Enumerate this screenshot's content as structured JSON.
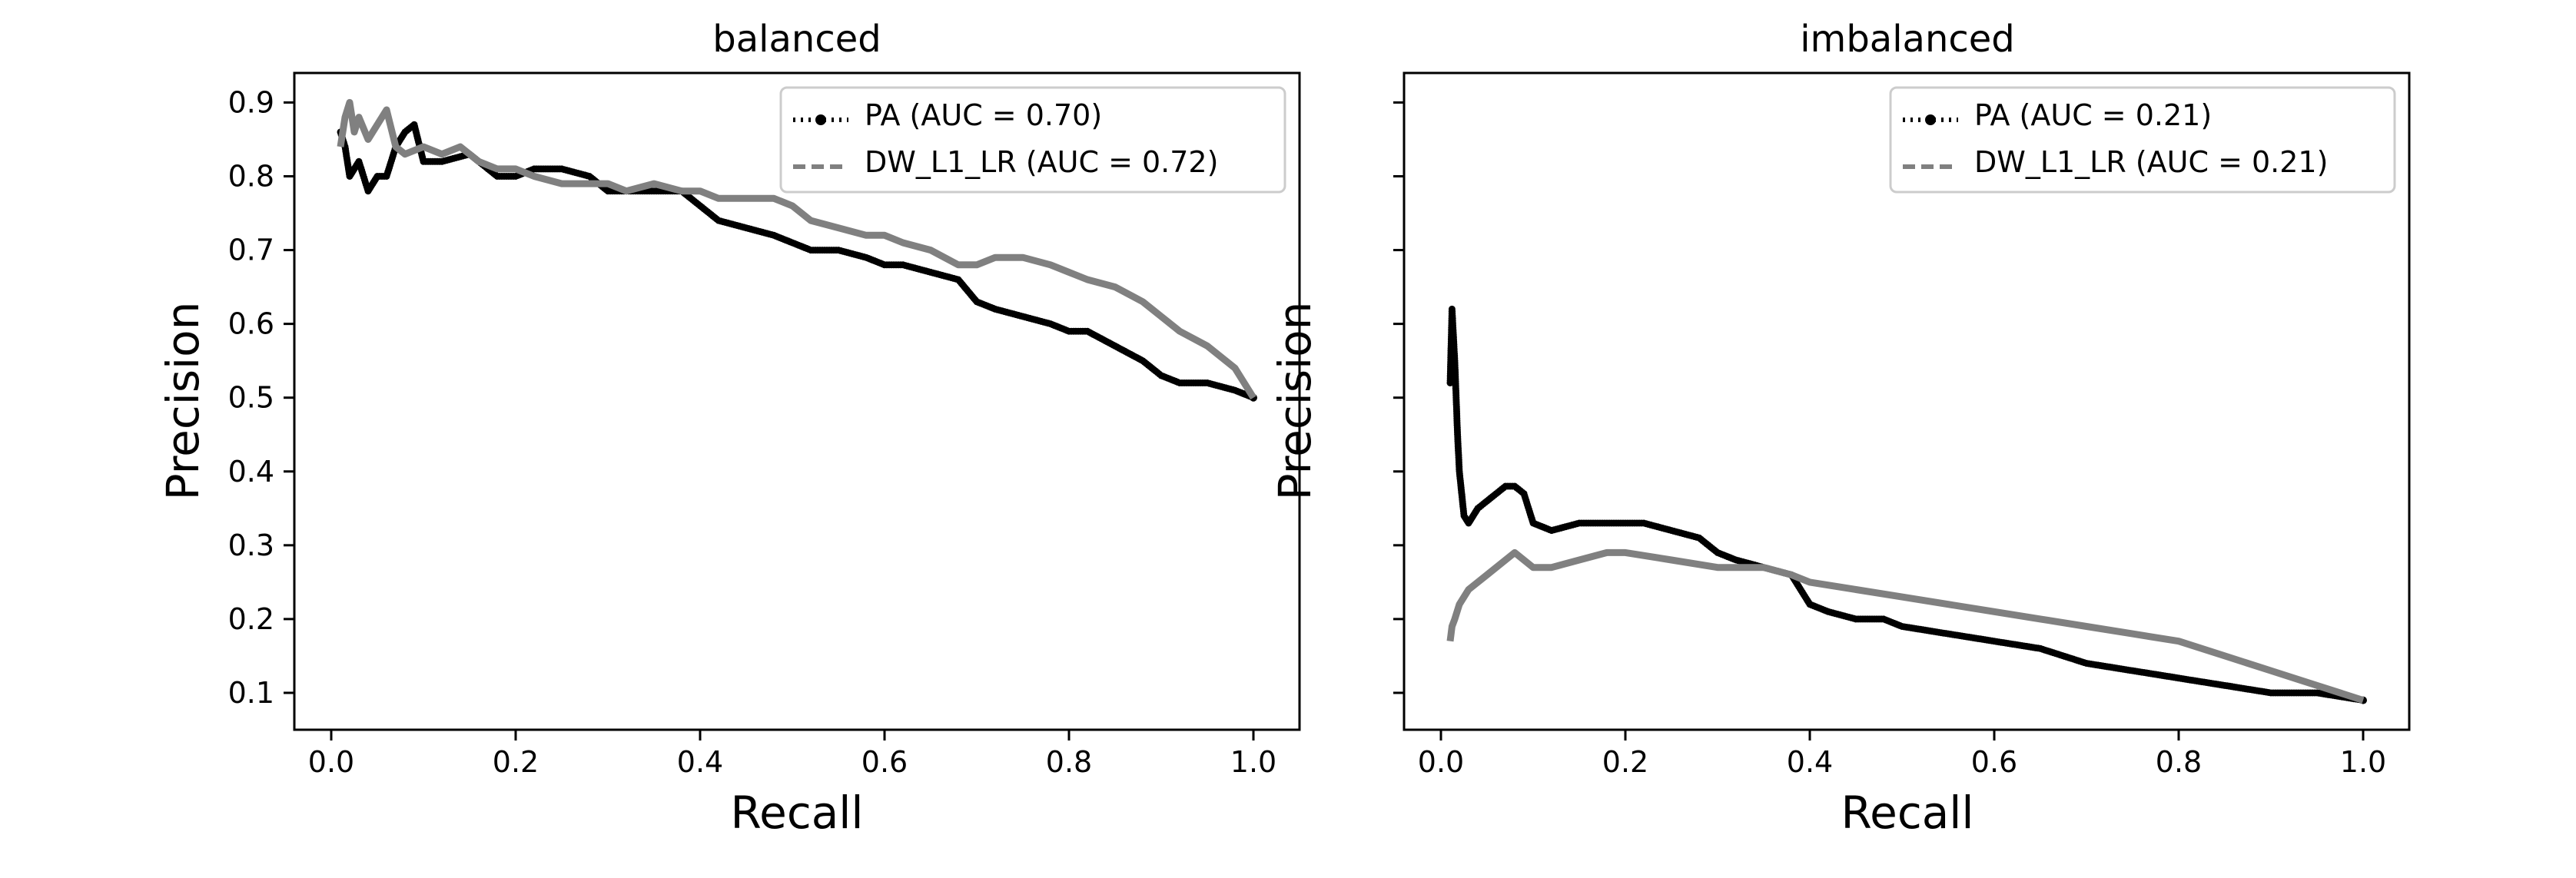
{
  "chart_data": [
    {
      "type": "line",
      "title": "balanced",
      "xlabel": "Recall",
      "ylabel": "Precision",
      "xlim": [
        -0.04,
        1.05
      ],
      "ylim": [
        0.05,
        0.94
      ],
      "xticks": [
        0.0,
        0.2,
        0.4,
        0.6,
        0.8,
        1.0
      ],
      "xtick_labels": [
        "0.0",
        "0.2",
        "0.4",
        "0.6",
        "0.8",
        "1.0"
      ],
      "yticks": [
        0.1,
        0.2,
        0.3,
        0.4,
        0.5,
        0.6,
        0.7,
        0.8,
        0.9
      ],
      "ytick_labels": [
        "0.1",
        "0.2",
        "0.3",
        "0.4",
        "0.5",
        "0.6",
        "0.7",
        "0.8",
        "0.9"
      ],
      "show_ytick_labels": true,
      "legend_position": "upper right",
      "series": [
        {
          "name": "PA (AUC = 0.70)",
          "color": "#000000",
          "style": "dotted-marker",
          "x": [
            0.01,
            0.015,
            0.02,
            0.03,
            0.04,
            0.05,
            0.06,
            0.07,
            0.08,
            0.09,
            0.1,
            0.12,
            0.15,
            0.18,
            0.2,
            0.22,
            0.25,
            0.28,
            0.3,
            0.32,
            0.35,
            0.38,
            0.4,
            0.42,
            0.45,
            0.48,
            0.5,
            0.52,
            0.55,
            0.58,
            0.6,
            0.62,
            0.65,
            0.68,
            0.7,
            0.72,
            0.75,
            0.78,
            0.8,
            0.82,
            0.85,
            0.88,
            0.9,
            0.92,
            0.95,
            0.98,
            1.0
          ],
          "y": [
            0.86,
            0.84,
            0.8,
            0.82,
            0.78,
            0.8,
            0.8,
            0.84,
            0.86,
            0.87,
            0.82,
            0.82,
            0.83,
            0.8,
            0.8,
            0.81,
            0.81,
            0.8,
            0.78,
            0.78,
            0.78,
            0.78,
            0.76,
            0.74,
            0.73,
            0.72,
            0.71,
            0.7,
            0.7,
            0.69,
            0.68,
            0.68,
            0.67,
            0.66,
            0.63,
            0.62,
            0.61,
            0.6,
            0.59,
            0.59,
            0.57,
            0.55,
            0.53,
            0.52,
            0.52,
            0.51,
            0.5
          ]
        },
        {
          "name": "DW_L1_LR (AUC = 0.72)",
          "color": "#808080",
          "style": "dashed",
          "x": [
            0.01,
            0.015,
            0.02,
            0.025,
            0.03,
            0.04,
            0.05,
            0.06,
            0.07,
            0.08,
            0.1,
            0.12,
            0.14,
            0.16,
            0.18,
            0.2,
            0.22,
            0.25,
            0.28,
            0.3,
            0.32,
            0.35,
            0.38,
            0.4,
            0.42,
            0.45,
            0.48,
            0.5,
            0.52,
            0.55,
            0.58,
            0.6,
            0.62,
            0.65,
            0.68,
            0.7,
            0.72,
            0.75,
            0.78,
            0.8,
            0.82,
            0.85,
            0.88,
            0.9,
            0.92,
            0.95,
            0.98,
            1.0
          ],
          "y": [
            0.84,
            0.88,
            0.9,
            0.86,
            0.88,
            0.85,
            0.87,
            0.89,
            0.84,
            0.83,
            0.84,
            0.83,
            0.84,
            0.82,
            0.81,
            0.81,
            0.8,
            0.79,
            0.79,
            0.79,
            0.78,
            0.79,
            0.78,
            0.78,
            0.77,
            0.77,
            0.77,
            0.76,
            0.74,
            0.73,
            0.72,
            0.72,
            0.71,
            0.7,
            0.68,
            0.68,
            0.69,
            0.69,
            0.68,
            0.67,
            0.66,
            0.65,
            0.63,
            0.61,
            0.59,
            0.57,
            0.54,
            0.5
          ]
        }
      ]
    },
    {
      "type": "line",
      "title": "imbalanced",
      "xlabel": "Recall",
      "ylabel": "Precision",
      "xlim": [
        -0.04,
        1.05
      ],
      "ylim": [
        0.05,
        0.94
      ],
      "xticks": [
        0.0,
        0.2,
        0.4,
        0.6,
        0.8,
        1.0
      ],
      "xtick_labels": [
        "0.0",
        "0.2",
        "0.4",
        "0.6",
        "0.8",
        "1.0"
      ],
      "yticks": [
        0.1,
        0.2,
        0.3,
        0.4,
        0.5,
        0.6,
        0.7,
        0.8,
        0.9
      ],
      "ytick_labels": [
        "0.1",
        "0.2",
        "0.3",
        "0.4",
        "0.5",
        "0.6",
        "0.7",
        "0.8",
        "0.9"
      ],
      "show_ytick_labels": false,
      "legend_position": "upper right",
      "series": [
        {
          "name": "PA (AUC = 0.21)",
          "color": "#000000",
          "style": "dotted-marker",
          "x": [
            0.01,
            0.012,
            0.015,
            0.018,
            0.02,
            0.025,
            0.03,
            0.04,
            0.05,
            0.06,
            0.07,
            0.08,
            0.09,
            0.1,
            0.12,
            0.15,
            0.18,
            0.2,
            0.22,
            0.25,
            0.28,
            0.3,
            0.32,
            0.35,
            0.38,
            0.4,
            0.42,
            0.45,
            0.48,
            0.5,
            0.55,
            0.6,
            0.65,
            0.7,
            0.75,
            0.8,
            0.85,
            0.9,
            0.95,
            1.0
          ],
          "y": [
            0.52,
            0.62,
            0.55,
            0.45,
            0.4,
            0.34,
            0.33,
            0.35,
            0.36,
            0.37,
            0.38,
            0.38,
            0.37,
            0.33,
            0.32,
            0.33,
            0.33,
            0.33,
            0.33,
            0.32,
            0.31,
            0.29,
            0.28,
            0.27,
            0.26,
            0.22,
            0.21,
            0.2,
            0.2,
            0.19,
            0.18,
            0.17,
            0.16,
            0.14,
            0.13,
            0.12,
            0.11,
            0.1,
            0.1,
            0.09
          ]
        },
        {
          "name": "DW_L1_LR (AUC = 0.21)",
          "color": "#808080",
          "style": "dashed",
          "x": [
            0.01,
            0.012,
            0.015,
            0.02,
            0.03,
            0.05,
            0.07,
            0.08,
            0.1,
            0.12,
            0.15,
            0.18,
            0.2,
            0.25,
            0.3,
            0.35,
            0.38,
            0.4,
            0.45,
            0.5,
            0.55,
            0.6,
            0.65,
            0.7,
            0.75,
            0.8,
            0.85,
            0.9,
            0.95,
            1.0
          ],
          "y": [
            0.17,
            0.19,
            0.2,
            0.22,
            0.24,
            0.26,
            0.28,
            0.29,
            0.27,
            0.27,
            0.28,
            0.29,
            0.29,
            0.28,
            0.27,
            0.27,
            0.26,
            0.25,
            0.24,
            0.23,
            0.22,
            0.21,
            0.2,
            0.19,
            0.18,
            0.17,
            0.15,
            0.13,
            0.11,
            0.09
          ]
        }
      ]
    }
  ]
}
